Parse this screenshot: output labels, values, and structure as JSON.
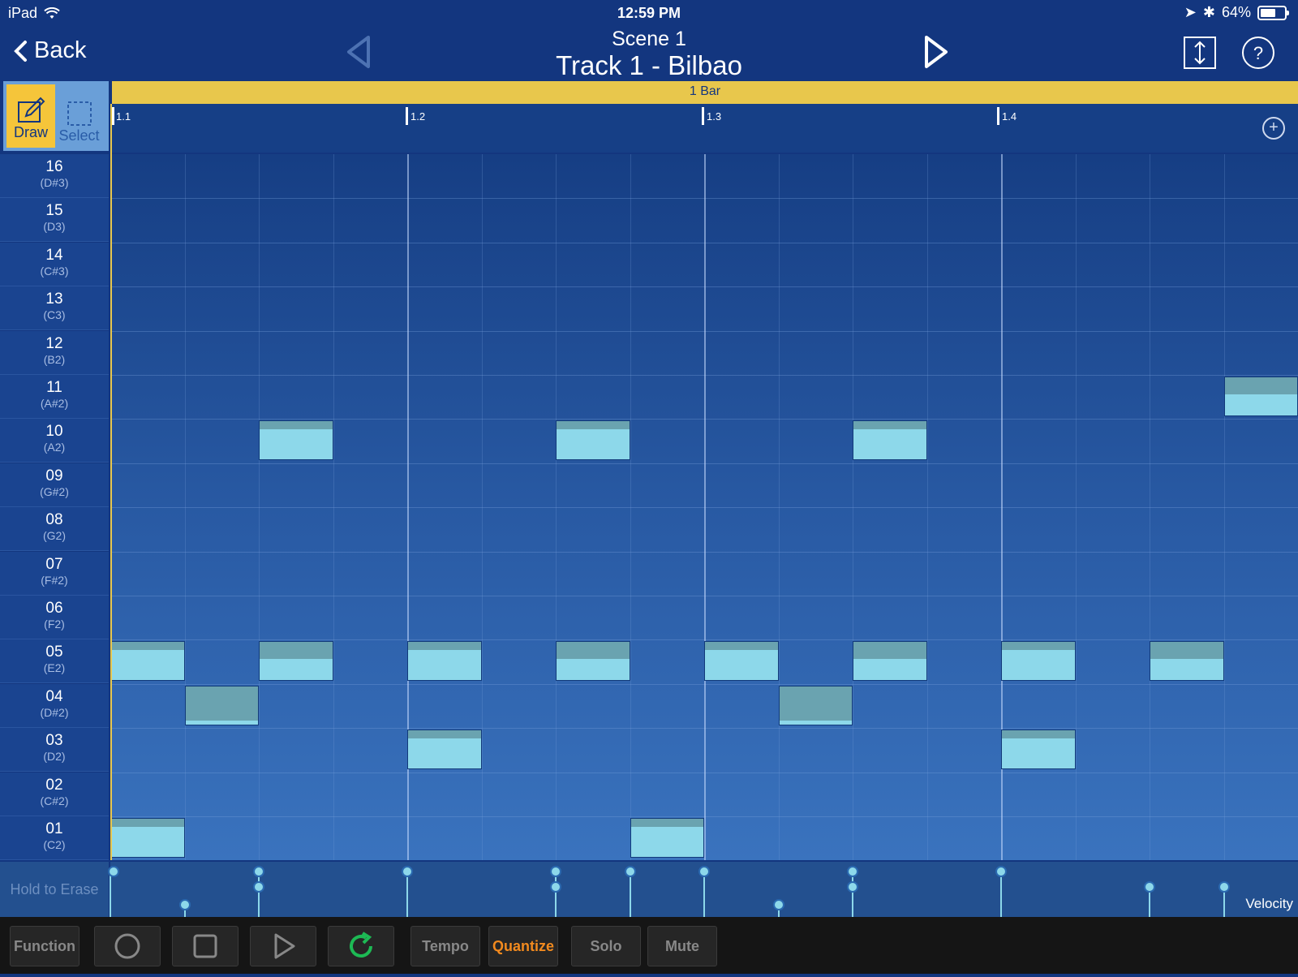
{
  "status": {
    "device": "iPad",
    "time": "12:59 PM",
    "battery": "64%",
    "battery_level": 0.64
  },
  "nav": {
    "back_label": "Back",
    "scene": "Scene  1",
    "track": "Track 1 - Bilbao"
  },
  "tools": {
    "draw": "Draw",
    "select": "Select"
  },
  "timeline": {
    "length_label": "1 Bar",
    "ticks": [
      "1.1",
      "1.2",
      "1.3",
      "1.4"
    ]
  },
  "keys": [
    {
      "num": "16",
      "pitch": "(D#3)"
    },
    {
      "num": "15",
      "pitch": "(D3)"
    },
    {
      "num": "14",
      "pitch": "(C#3)"
    },
    {
      "num": "13",
      "pitch": "(C3)"
    },
    {
      "num": "12",
      "pitch": "(B2)"
    },
    {
      "num": "11",
      "pitch": "(A#2)"
    },
    {
      "num": "10",
      "pitch": "(A2)"
    },
    {
      "num": "09",
      "pitch": "(G#2)"
    },
    {
      "num": "08",
      "pitch": "(G2)"
    },
    {
      "num": "07",
      "pitch": "(F#2)"
    },
    {
      "num": "06",
      "pitch": "(F2)"
    },
    {
      "num": "05",
      "pitch": "(E2)"
    },
    {
      "num": "04",
      "pitch": "(D#2)"
    },
    {
      "num": "03",
      "pitch": "(D2)"
    },
    {
      "num": "02",
      "pitch": "(C#2)"
    },
    {
      "num": "01",
      "pitch": "(C2)"
    }
  ],
  "notes": [
    {
      "pad": "01",
      "step": 0,
      "velocity": 1.0
    },
    {
      "pad": "05",
      "step": 0,
      "velocity": 1.0
    },
    {
      "pad": "04",
      "step": 1,
      "velocity": 0.1
    },
    {
      "pad": "10",
      "step": 2,
      "velocity": 1.0
    },
    {
      "pad": "05",
      "step": 2,
      "velocity": 0.7
    },
    {
      "pad": "03",
      "step": 4,
      "velocity": 1.0
    },
    {
      "pad": "05",
      "step": 4,
      "velocity": 1.0
    },
    {
      "pad": "10",
      "step": 6,
      "velocity": 1.0
    },
    {
      "pad": "05",
      "step": 6,
      "velocity": 0.7
    },
    {
      "pad": "01",
      "step": 7,
      "velocity": 1.0
    },
    {
      "pad": "05",
      "step": 8,
      "velocity": 1.0
    },
    {
      "pad": "04",
      "step": 9,
      "velocity": 0.1
    },
    {
      "pad": "10",
      "step": 10,
      "velocity": 1.0
    },
    {
      "pad": "05",
      "step": 10,
      "velocity": 0.7
    },
    {
      "pad": "03",
      "step": 12,
      "velocity": 1.0
    },
    {
      "pad": "05",
      "step": 12,
      "velocity": 1.0
    },
    {
      "pad": "05",
      "step": 14,
      "velocity": 0.7
    },
    {
      "pad": "11",
      "step": 15,
      "velocity": 0.7
    }
  ],
  "velocity_points": [
    {
      "step": 0,
      "level": 0.9
    },
    {
      "step": 1,
      "level": 0.25
    },
    {
      "step": 2,
      "level": 0.9
    },
    {
      "step": 2,
      "level": 0.6
    },
    {
      "step": 4,
      "level": 0.9
    },
    {
      "step": 6,
      "level": 0.9
    },
    {
      "step": 6,
      "level": 0.6
    },
    {
      "step": 7,
      "level": 0.9
    },
    {
      "step": 8,
      "level": 0.9
    },
    {
      "step": 9,
      "level": 0.25
    },
    {
      "step": 10,
      "level": 0.9
    },
    {
      "step": 10,
      "level": 0.6
    },
    {
      "step": 12,
      "level": 0.9
    },
    {
      "step": 14,
      "level": 0.6
    },
    {
      "step": 15,
      "level": 0.6
    }
  ],
  "velocity_label": "Velocity",
  "erase_label": "Hold to Erase",
  "toolbar": {
    "function": "Function",
    "tempo": "Tempo",
    "quantize": "Quantize",
    "solo": "Solo",
    "mute": "Mute"
  },
  "colors": {
    "background": "#13367f",
    "accent": "#e8c74c",
    "note": "#8dd8ea",
    "quantize": "#f28a1e",
    "loop": "#1db954"
  }
}
